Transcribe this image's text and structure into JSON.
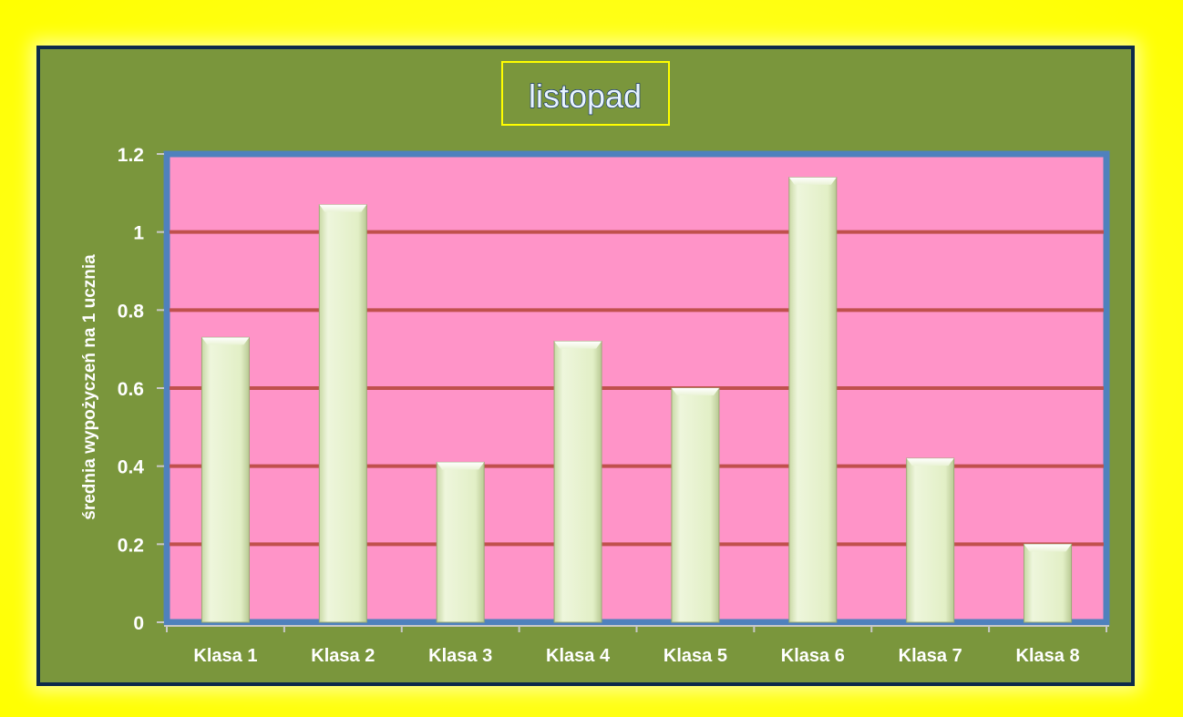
{
  "chart_data": {
    "type": "bar",
    "title": "listopad",
    "xlabel": "",
    "ylabel": "średnia wypożyczeń na 1 ucznia",
    "categories": [
      "Klasa 1",
      "Klasa 2",
      "Klasa 3",
      "Klasa 4",
      "Klasa 5",
      "Klasa 6",
      "Klasa 7",
      "Klasa 8"
    ],
    "values": [
      0.73,
      1.07,
      0.41,
      0.72,
      0.6,
      1.14,
      0.42,
      0.2
    ],
    "ylim": [
      0,
      1.2
    ],
    "yticks": [
      "0",
      "0.2",
      "0.4",
      "0.6",
      "0.8",
      "1",
      "1.2"
    ],
    "grid": true,
    "legend": "none",
    "colors": {
      "background_outer": "#ffff00",
      "chart_area": "#7a963c",
      "plot_area": "#ff94c8",
      "plot_border": "#4f81bd",
      "gridline": "#c0504d",
      "bar_fill": "#e2efc6",
      "title_box_border": "#ffff00"
    }
  }
}
